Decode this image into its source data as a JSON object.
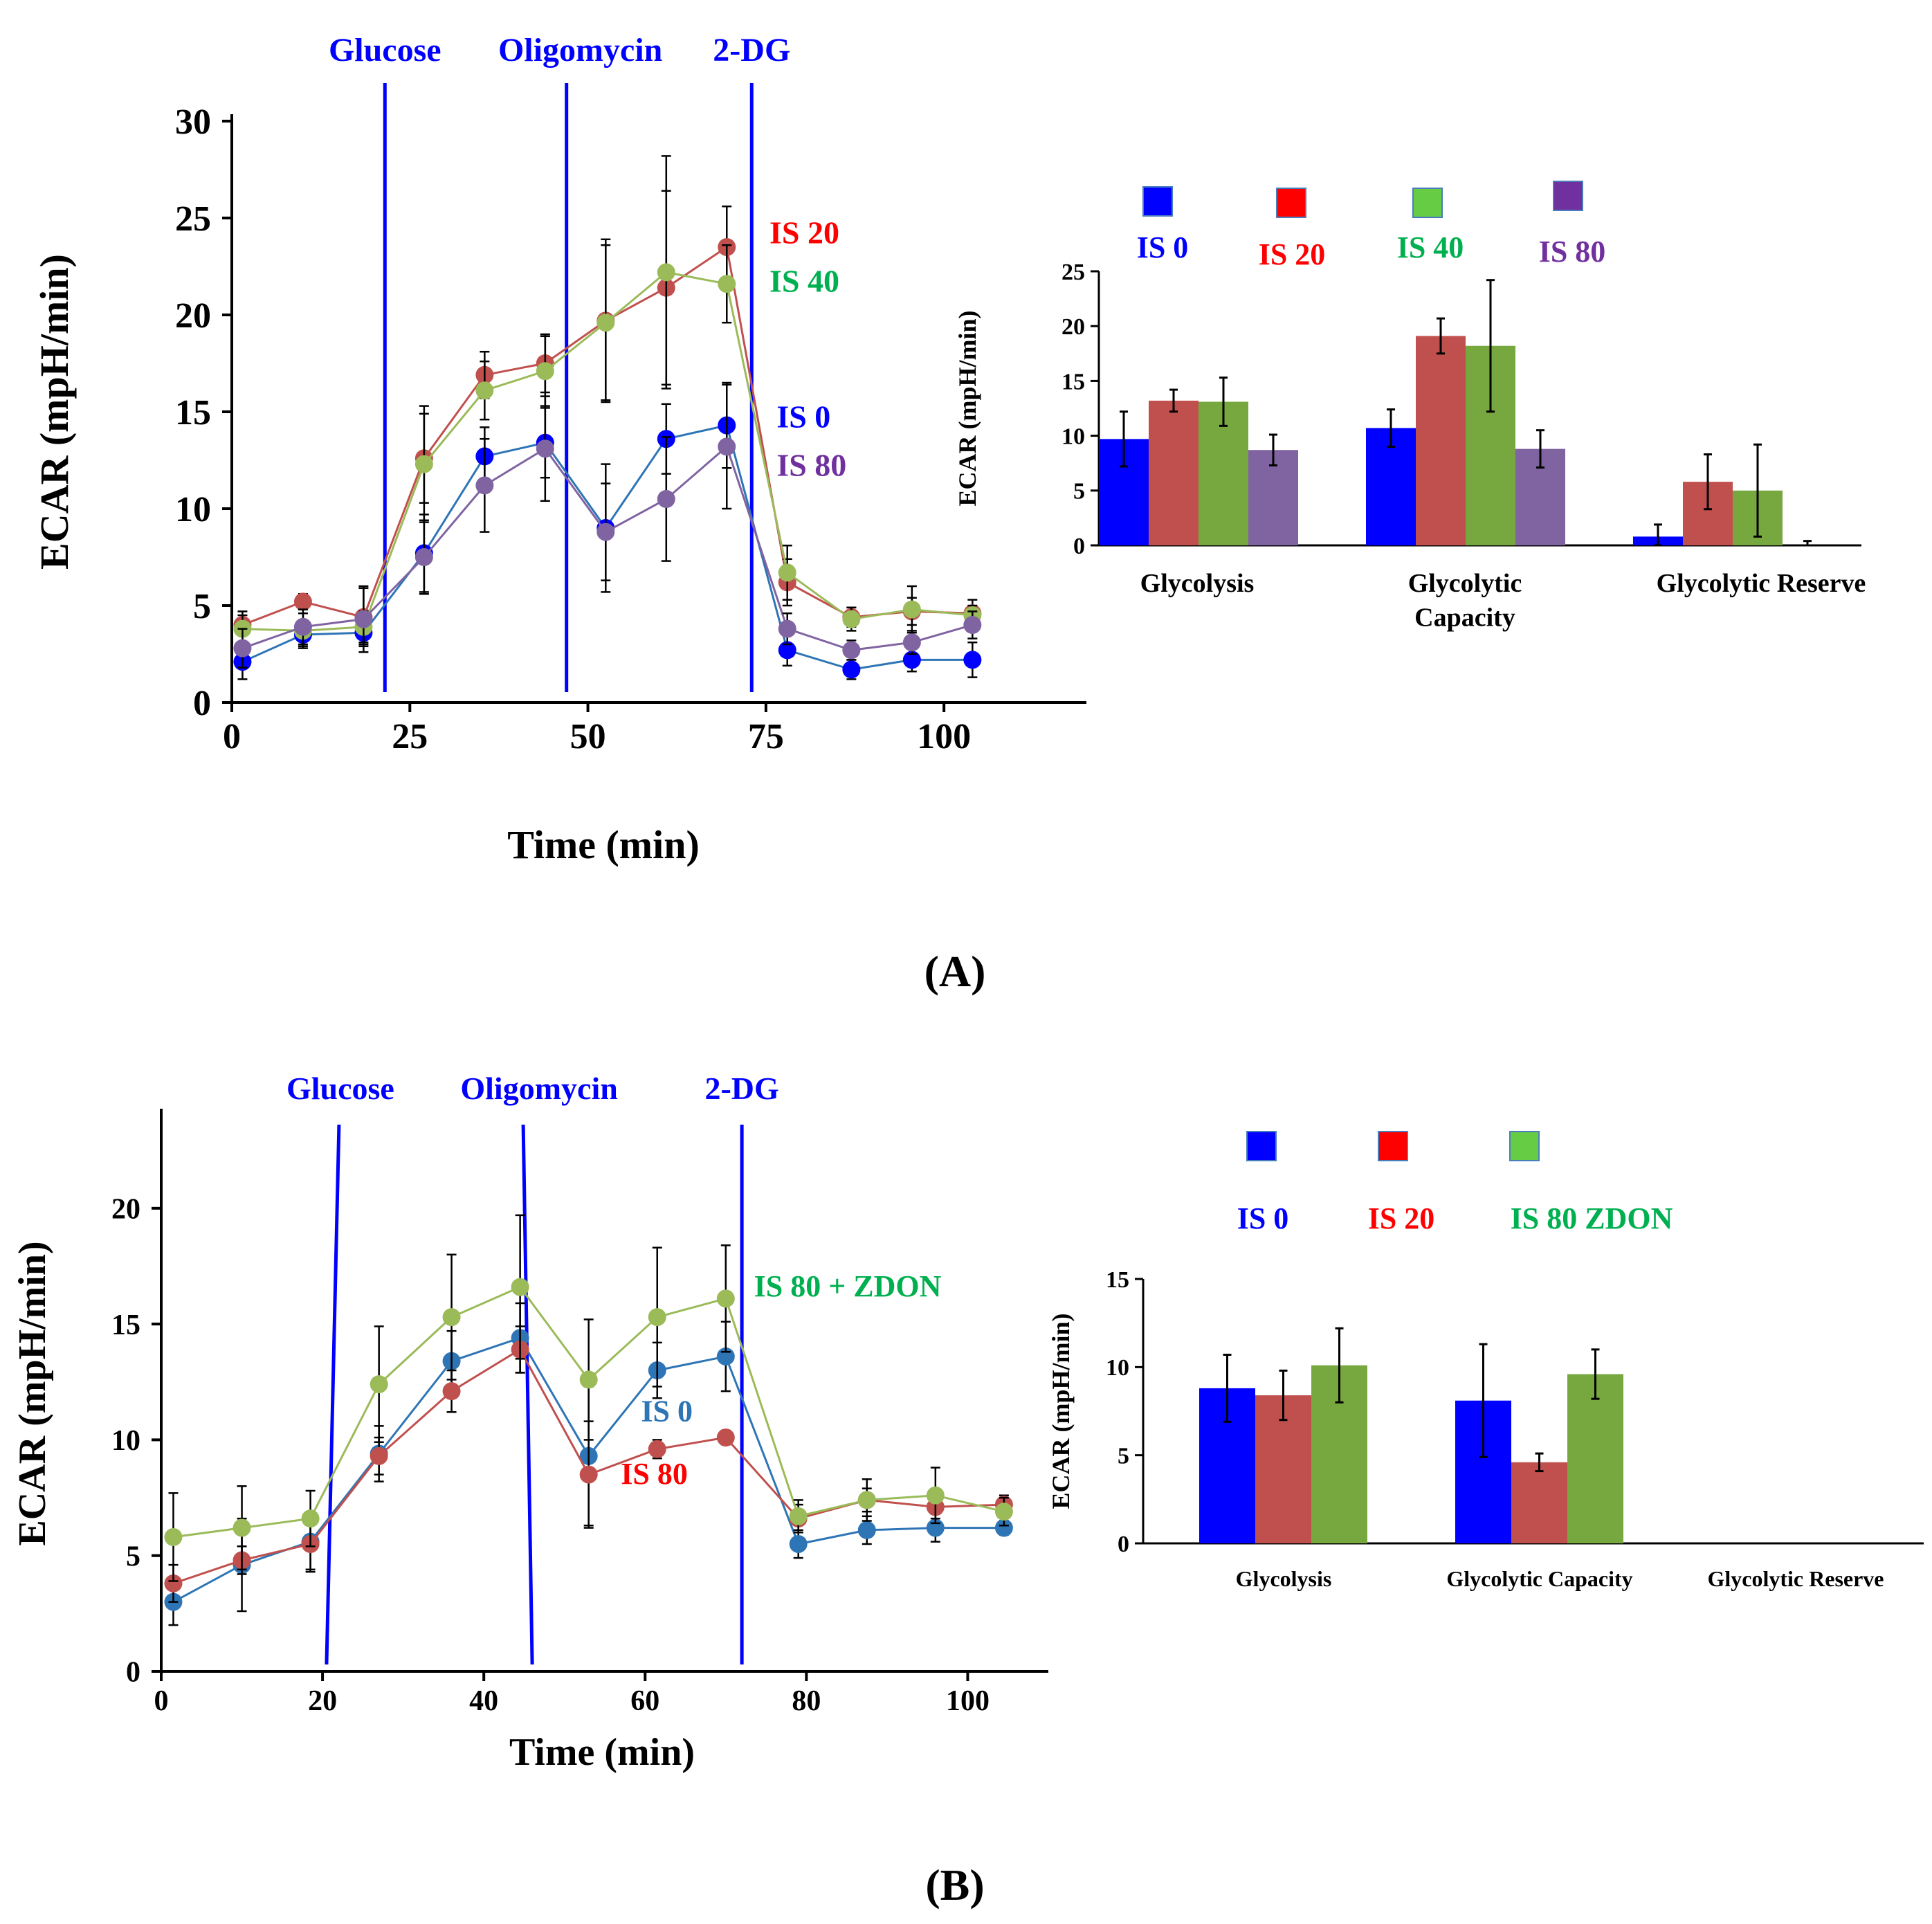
{
  "panel_labels": {
    "A": "(A)",
    "B": "(B)"
  },
  "colors": {
    "blue": "#0000ff",
    "red": "#ff0000",
    "green": "#00b050",
    "purple": "#7030a0",
    "line_blue": "#2e75b6",
    "line_red": "#c0504d",
    "line_green": "#9bbb59",
    "line_purple": "#8064a2",
    "marker_blue_A": "#0000ff",
    "marker_blue_B": "#2e75b6",
    "bar_blue": "#0000ff",
    "bar_red": "#c0504d",
    "bar_green": "#77a83f",
    "bar_purple": "#8064a2",
    "legend_red": "#ff0000",
    "legend_green": "#66cc44",
    "legend_purple": "#7030a0",
    "injection": "#0000ff"
  },
  "chart_data": [
    {
      "id": "A-line",
      "type": "line",
      "title": "",
      "xlabel": "Time (min)",
      "ylabel": "ECAR (mpH/min)",
      "xlim": [
        0,
        120
      ],
      "ylim": [
        0,
        30
      ],
      "xticks": [
        0,
        25,
        50,
        75,
        100
      ],
      "yticks": [
        0,
        5,
        10,
        15,
        20,
        25,
        30
      ],
      "injections": [
        {
          "label": "Glucose",
          "x": 21.5
        },
        {
          "label": "Oligomycin",
          "x": 47
        },
        {
          "label": "2-DG",
          "x": 73
        }
      ],
      "x": [
        1.5,
        10,
        18.5,
        27,
        35.5,
        44,
        52.5,
        61,
        69.5,
        78,
        87,
        95.5,
        104
      ],
      "series": [
        {
          "name": "IS 0",
          "color_key": "line_blue",
          "marker_key": "marker_blue_A",
          "label_color_key": "blue",
          "values": [
            2.1,
            3.5,
            3.6,
            7.7,
            12.7,
            13.4,
            9.0,
            13.6,
            14.3,
            2.7,
            1.7,
            2.2,
            2.2
          ],
          "errors": [
            0.9,
            0.6,
            0.6,
            2.0,
            1.5,
            1.8,
            3.3,
            1.8,
            2.2,
            0.8,
            0.5,
            0.6,
            0.9
          ]
        },
        {
          "name": "IS 20",
          "color_key": "line_red",
          "marker_key": "line_red",
          "label_color_key": "red",
          "values": [
            4.0,
            5.2,
            4.4,
            12.6,
            16.9,
            17.5,
            19.7,
            21.4,
            23.5,
            6.2,
            4.4,
            4.7,
            4.6
          ],
          "errors": [
            0.5,
            0.4,
            1.5,
            2.3,
            1.2,
            1.5,
            4.2,
            5.0,
            2.1,
            1.2,
            0.5,
            0.7,
            0.7
          ]
        },
        {
          "name": "IS 40",
          "color_key": "line_green",
          "marker_key": "line_green",
          "label_color_key": "green",
          "values": [
            3.8,
            3.7,
            3.9,
            12.3,
            16.1,
            17.1,
            19.6,
            22.2,
            21.6,
            6.7,
            4.3,
            4.8,
            4.5
          ],
          "errors": [
            0.9,
            0.9,
            0.8,
            3.0,
            1.5,
            1.8,
            4.0,
            6.0,
            2.0,
            1.4,
            0.6,
            1.2,
            0.5
          ]
        },
        {
          "name": "IS 80",
          "color_key": "line_purple",
          "marker_key": "line_purple",
          "label_color_key": "purple",
          "values": [
            2.8,
            3.9,
            4.3,
            7.5,
            11.2,
            13.1,
            8.8,
            10.5,
            13.2,
            3.8,
            2.7,
            3.1,
            4.0
          ],
          "errors": [
            1.0,
            0.9,
            1.7,
            1.9,
            2.4,
            2.7,
            2.5,
            3.2,
            3.2,
            0.8,
            0.5,
            0.6,
            0.7
          ]
        }
      ],
      "end_labels": [
        {
          "text": "IS 20",
          "color_key": "red",
          "x": 75.5,
          "y": 23.7
        },
        {
          "text": "IS 40",
          "color_key": "green",
          "x": 75.5,
          "y": 21.2
        },
        {
          "text": "IS 0",
          "color_key": "blue",
          "x": 76.5,
          "y": 14.2
        },
        {
          "text": "IS 80",
          "color_key": "purple",
          "x": 76.5,
          "y": 11.7
        }
      ]
    },
    {
      "id": "A-bar",
      "type": "bar",
      "title": "",
      "xlabel": "",
      "ylabel": "ECAR (mpH/min)",
      "ylim": [
        0,
        25
      ],
      "yticks": [
        0,
        5,
        10,
        15,
        20,
        25
      ],
      "categories": [
        "Glycolysis",
        "Glycolytic\nCapacity",
        "Glycolytic Reserve"
      ],
      "series": [
        {
          "name": "IS 0",
          "color_key": "bar_blue",
          "legend_color_key": "blue",
          "values": [
            9.7,
            10.7,
            0.8
          ],
          "errors": [
            2.5,
            1.7,
            1.1
          ]
        },
        {
          "name": "IS 20",
          "color_key": "bar_red",
          "legend_color_key": "legend_red",
          "values": [
            13.2,
            19.1,
            5.8
          ],
          "errors": [
            1.0,
            1.6,
            2.5
          ]
        },
        {
          "name": "IS 40",
          "color_key": "bar_green",
          "legend_color_key": "legend_green",
          "values": [
            13.1,
            18.2,
            5.0
          ],
          "errors": [
            2.2,
            6.0,
            4.2
          ]
        },
        {
          "name": "IS 80",
          "color_key": "bar_purple",
          "legend_color_key": "legend_purple",
          "values": [
            8.7,
            8.8,
            0
          ],
          "errors": [
            1.4,
            1.7,
            0.4
          ]
        }
      ],
      "legend_label_colors": [
        "blue",
        "red",
        "green",
        "purple"
      ]
    },
    {
      "id": "B-line",
      "type": "line",
      "title": "",
      "xlabel": "Time (min)",
      "ylabel": "ECAR (mpH/min)",
      "xlim": [
        0,
        110
      ],
      "ylim": [
        0,
        24
      ],
      "xticks": [
        0,
        20,
        40,
        60,
        80,
        100
      ],
      "yticks": [
        0,
        5,
        10,
        15,
        20
      ],
      "injections": [
        {
          "label": "Glucose",
          "x": 20.5
        },
        {
          "label": "Oligomycin",
          "x": 46
        },
        {
          "label": "2-DG",
          "x": 72
        }
      ],
      "x": [
        1.5,
        10,
        18.5,
        27,
        36,
        44.5,
        53,
        61.5,
        70,
        79,
        87.5,
        96,
        104.5
      ],
      "series": [
        {
          "name": "IS 0",
          "color_key": "line_blue",
          "marker_key": "marker_blue_B",
          "label_color_key": "line_blue",
          "values": [
            3.0,
            4.6,
            5.6,
            9.4,
            13.4,
            14.4,
            9.3,
            13.0,
            13.6,
            5.5,
            6.1,
            6.2,
            6.2
          ],
          "errors": [
            1.0,
            2.0,
            1.2,
            1.2,
            1.3,
            1.5,
            3.0,
            1.2,
            1.5,
            0.6,
            0.6,
            0.6,
            0.3
          ]
        },
        {
          "name": "IS 80",
          "color_key": "line_red",
          "marker_key": "line_red",
          "label_color_key": "red",
          "values": [
            3.8,
            4.8,
            5.5,
            9.3,
            12.1,
            13.9,
            8.5,
            9.6,
            10.1,
            6.6,
            7.4,
            7.1,
            7.2
          ],
          "errors": [
            0.8,
            0.6,
            1.2,
            0.8,
            0.9,
            1.0,
            2.3,
            0.4,
            0.3,
            0.6,
            0.5,
            0.5,
            0.4
          ]
        },
        {
          "name": "IS 80 + ZDON",
          "color_key": "line_green",
          "marker_key": "line_green",
          "label_color_key": "green",
          "values": [
            5.8,
            6.2,
            6.6,
            12.4,
            15.3,
            16.6,
            12.6,
            15.3,
            16.1,
            6.7,
            7.4,
            7.6,
            6.9
          ],
          "errors": [
            1.9,
            1.8,
            1.2,
            2.5,
            2.7,
            3.1,
            2.6,
            3.0,
            2.3,
            0.7,
            0.9,
            1.2,
            0.6
          ]
        }
      ],
      "end_labels": [
        {
          "text": "IS 80 + ZDON",
          "color_key": "green",
          "x": 73.5,
          "y": 16.2
        },
        {
          "text": "IS 0",
          "color_key": "line_blue",
          "x": 59.5,
          "y": 10.8
        },
        {
          "text": "IS 80",
          "color_key": "red",
          "x": 57,
          "y": 8.1
        }
      ]
    },
    {
      "id": "B-bar",
      "type": "bar",
      "title": "",
      "xlabel": "",
      "ylabel": "ECAR (mpH/min)",
      "ylim": [
        0,
        15
      ],
      "yticks": [
        0,
        5,
        10,
        15
      ],
      "categories": [
        "Glycolysis",
        "Glycolytic Capacity",
        "Glycolytic Reserve"
      ],
      "series": [
        {
          "name": "IS 0",
          "color_key": "bar_blue",
          "legend_color_key": "blue",
          "values": [
            8.8,
            8.1,
            0
          ],
          "errors": [
            1.9,
            3.2,
            0
          ]
        },
        {
          "name": "IS 20",
          "color_key": "bar_red",
          "legend_color_key": "legend_red",
          "values": [
            8.4,
            4.6,
            0
          ],
          "errors": [
            1.4,
            0.5,
            0
          ]
        },
        {
          "name": "IS 80 ZDON",
          "color_key": "bar_green",
          "legend_color_key": "legend_green",
          "values": [
            10.1,
            9.6,
            0
          ],
          "errors": [
            2.1,
            1.4,
            0
          ]
        }
      ],
      "legend_label_colors": [
        "blue",
        "red",
        "green"
      ]
    }
  ]
}
